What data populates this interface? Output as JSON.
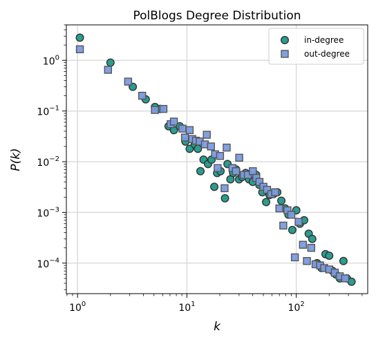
{
  "chart_data": {
    "type": "scatter",
    "title": "PolBlogs Degree Distribution",
    "xlabel": "k",
    "ylabel": "P(k)",
    "xscale": "log",
    "yscale": "log",
    "xlim": [
      0.79,
      450
    ],
    "ylim": [
      2.5e-05,
      5
    ],
    "grid": true,
    "legend_position": "top-right",
    "xticks": [
      {
        "value": 1,
        "base": "10",
        "exp": "0"
      },
      {
        "value": 10,
        "base": "10",
        "exp": "1"
      },
      {
        "value": 100,
        "base": "10",
        "exp": "2"
      }
    ],
    "yticks": [
      {
        "value": 1,
        "base": "10",
        "exp": "0"
      },
      {
        "value": 0.1,
        "base": "10",
        "exp": "−1"
      },
      {
        "value": 0.01,
        "base": "10",
        "exp": "−2"
      },
      {
        "value": 0.001,
        "base": "10",
        "exp": "−3"
      },
      {
        "value": 0.0001,
        "base": "10",
        "exp": "−4"
      }
    ],
    "series": [
      {
        "name": "in-degree",
        "marker": "circle",
        "color": "#2a9d8f",
        "edge_color": "#333333",
        "points": [
          [
            1.05,
            2.8
          ],
          [
            2.0,
            0.9
          ],
          [
            3.2,
            0.3
          ],
          [
            4.2,
            0.17
          ],
          [
            5.1,
            0.12
          ],
          [
            5.7,
            0.11
          ],
          [
            6.8,
            0.05
          ],
          [
            7.6,
            0.042
          ],
          [
            8.6,
            0.05
          ],
          [
            9.7,
            0.025
          ],
          [
            10.6,
            0.018
          ],
          [
            11.8,
            0.022
          ],
          [
            12.6,
            0.018
          ],
          [
            13.3,
            0.0065
          ],
          [
            14.2,
            0.011
          ],
          [
            15.6,
            0.009
          ],
          [
            16.8,
            0.011
          ],
          [
            17.8,
            0.0032
          ],
          [
            18.9,
            0.006
          ],
          [
            20.3,
            0.0065
          ],
          [
            22.3,
            0.0019
          ],
          [
            23.5,
            0.009
          ],
          [
            25.0,
            0.0045
          ],
          [
            26.5,
            0.006
          ],
          [
            28.2,
            0.007
          ],
          [
            30.0,
            0.0045
          ],
          [
            32.0,
            0.005
          ],
          [
            34.5,
            0.006
          ],
          [
            37.0,
            0.0045
          ],
          [
            40.0,
            0.004
          ],
          [
            43.0,
            0.0055
          ],
          [
            46.0,
            0.0035
          ],
          [
            49.0,
            0.0025
          ],
          [
            53.0,
            0.0016
          ],
          [
            57.0,
            0.0022
          ],
          [
            62.0,
            0.0023
          ],
          [
            67.0,
            0.0025
          ],
          [
            73.0,
            0.0017
          ],
          [
            79.0,
            0.0012
          ],
          [
            85.0,
            0.0009
          ],
          [
            92.0,
            0.00045
          ],
          [
            100.0,
            0.0011
          ],
          [
            108.0,
            0.0006
          ],
          [
            118.0,
            0.0007
          ],
          [
            130.0,
            0.00038
          ],
          [
            140.0,
            0.0003
          ],
          [
            155.0,
            0.0001
          ],
          [
            170.0,
            8e-05
          ],
          [
            185.0,
            0.00015
          ],
          [
            200.0,
            0.00014
          ],
          [
            215.0,
            7e-05
          ],
          [
            230.0,
            6e-05
          ],
          [
            250.0,
            5e-05
          ],
          [
            270.0,
            0.00011
          ],
          [
            290.0,
            5e-05
          ],
          [
            320.0,
            4.3e-05
          ]
        ]
      },
      {
        "name": "out-degree",
        "marker": "square",
        "color": "#7b9be0",
        "edge_color": "#555555",
        "points": [
          [
            1.05,
            1.65
          ],
          [
            1.9,
            0.65
          ],
          [
            2.9,
            0.38
          ],
          [
            3.9,
            0.2
          ],
          [
            5.1,
            0.105
          ],
          [
            6.1,
            0.11
          ],
          [
            7.1,
            0.055
          ],
          [
            7.6,
            0.062
          ],
          [
            9.1,
            0.045
          ],
          [
            9.6,
            0.03
          ],
          [
            10.6,
            0.042
          ],
          [
            11.2,
            0.028
          ],
          [
            12.1,
            0.026
          ],
          [
            13.1,
            0.025
          ],
          [
            14.6,
            0.022
          ],
          [
            15.2,
            0.034
          ],
          [
            16.6,
            0.02
          ],
          [
            18.1,
            0.014
          ],
          [
            19.1,
            0.0075
          ],
          [
            20.1,
            0.013
          ],
          [
            22.1,
            0.003
          ],
          [
            23.1,
            0.019
          ],
          [
            26.1,
            0.0075
          ],
          [
            28.1,
            0.0065
          ],
          [
            30.1,
            0.012
          ],
          [
            33.1,
            0.0055
          ],
          [
            36.1,
            0.0055
          ],
          [
            40.1,
            0.0065
          ],
          [
            43.1,
            0.0048
          ],
          [
            46.1,
            0.004
          ],
          [
            50.1,
            0.0032
          ],
          [
            54.1,
            0.0028
          ],
          [
            59.1,
            0.0023
          ],
          [
            64.1,
            0.0025
          ],
          [
            70.1,
            0.0012
          ],
          [
            76.1,
            0.00055
          ],
          [
            83.1,
            0.0011
          ],
          [
            90.1,
            0.0009
          ],
          [
            97.1,
            0.00013
          ],
          [
            105.1,
            0.00065
          ],
          [
            115.1,
            0.00023
          ],
          [
            125.1,
            0.00011
          ],
          [
            137.1,
            0.0002
          ],
          [
            150.1,
            9.5e-05
          ],
          [
            165.1,
            9e-05
          ],
          [
            180.1,
            8e-05
          ],
          [
            200.1,
            7.5e-05
          ],
          [
            225.1,
            6.5e-05
          ],
          [
            250.1,
            5.5e-05
          ],
          [
            280.1,
            5e-05
          ]
        ]
      }
    ]
  }
}
